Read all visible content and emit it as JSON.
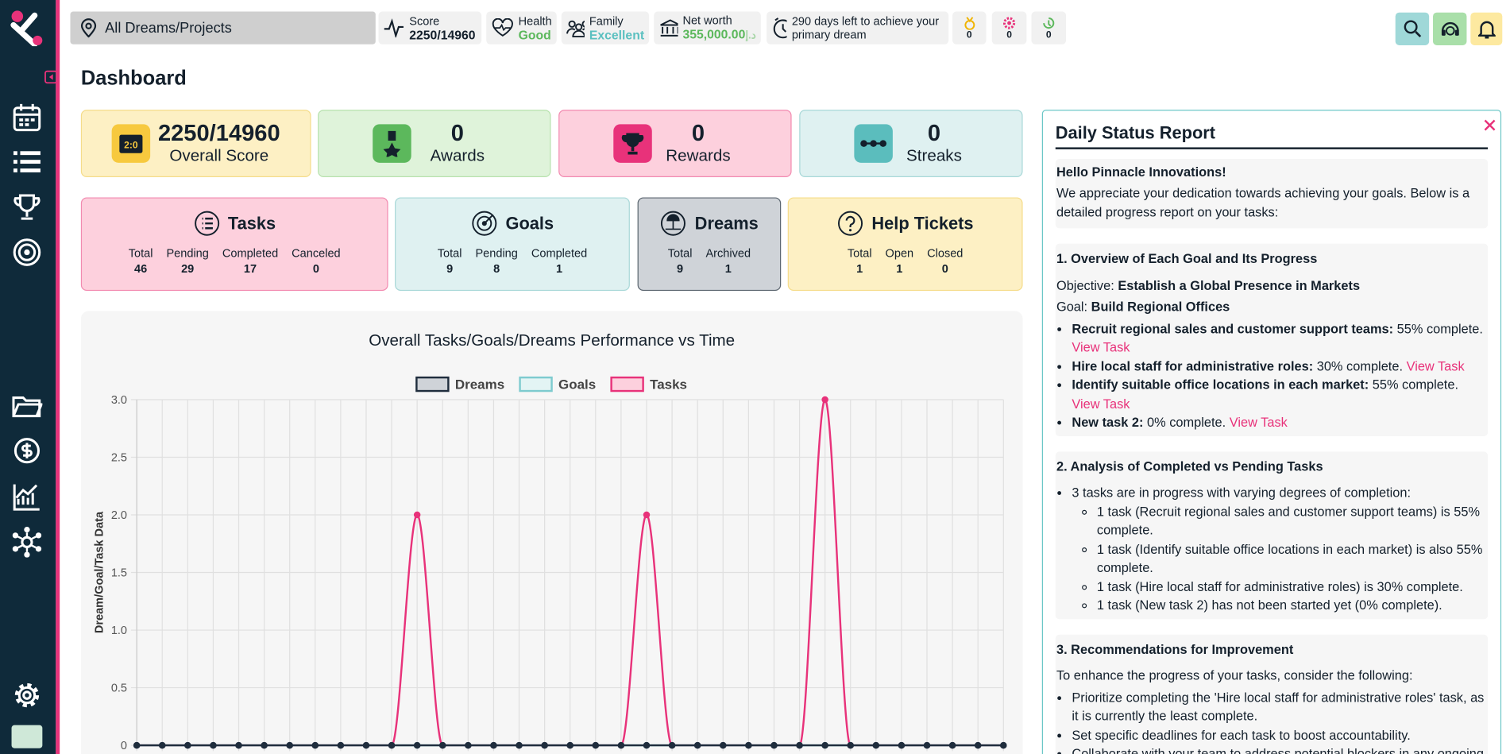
{
  "topbar": {
    "search": "All Dreams/Projects",
    "score": {
      "label": "Score",
      "value": "2250/14960"
    },
    "health": {
      "label": "Health",
      "value": "Good"
    },
    "family": {
      "label": "Family",
      "value": "Excellent"
    },
    "net_worth": {
      "label": "Net worth",
      "value": "355,000.00",
      "currency": "د.إ"
    },
    "countdown": "290 days left to achieve your primary dream",
    "badges": [
      0,
      0,
      0
    ]
  },
  "heading": "Dashboard",
  "stats": [
    {
      "value": "2250/14960",
      "label": "Overall Score"
    },
    {
      "value": 0,
      "label": "Awards"
    },
    {
      "value": 0,
      "label": "Rewards"
    },
    {
      "value": 0,
      "label": "Streaks"
    }
  ],
  "sections": [
    {
      "title": "Tasks",
      "stats": [
        {
          "label": "Total",
          "value": 46
        },
        {
          "label": "Pending",
          "value": 29
        },
        {
          "label": "Completed",
          "value": 17
        },
        {
          "label": "Canceled",
          "value": 0
        }
      ]
    },
    {
      "title": "Goals",
      "stats": [
        {
          "label": "Total",
          "value": 9
        },
        {
          "label": "Pending",
          "value": 8
        },
        {
          "label": "Completed",
          "value": 1
        }
      ]
    },
    {
      "title": "Dreams",
      "stats": [
        {
          "label": "Total",
          "value": 9
        },
        {
          "label": "Archived",
          "value": 1
        }
      ]
    },
    {
      "title": "Help Tickets",
      "stats": [
        {
          "label": "Total",
          "value": 1
        },
        {
          "label": "Open",
          "value": 1
        },
        {
          "label": "Closed",
          "value": 0
        }
      ]
    }
  ],
  "report": {
    "title": "Daily Status Report",
    "greeting": "Hello Pinnacle Innovations!",
    "intro": "We appreciate your dedication towards achieving your goals. Below is a detailed progress report on your tasks:",
    "sections": [
      {
        "heading": "1. Overview of Each Goal and Its Progress",
        "lines": [
          {
            "label": "Objective:",
            "value": "Establish a Global Presence in Markets"
          },
          {
            "label": "Goal:",
            "value": "Build Regional Offices"
          }
        ],
        "items": [
          {
            "bold": "Recruit regional sales and customer support teams:",
            "text": "55% complete.",
            "link": "View Task"
          },
          {
            "bold": "Hire local staff for administrative roles:",
            "text": "30% complete.",
            "link": "View Task"
          },
          {
            "bold": "Identify suitable office locations in each market:",
            "text": "55% complete.",
            "link": "View Task"
          },
          {
            "bold": "New task 2:",
            "text": "0% complete.",
            "link": "View Task"
          }
        ]
      },
      {
        "heading": "2. Analysis of Completed vs Pending Tasks",
        "items": [
          {
            "text": "3 tasks are in progress with varying degrees of completion:",
            "subitems": [
              "1 task (Recruit regional sales and customer support teams) is 55% complete.",
              "1 task (Identify suitable office locations in each market) is also 55% complete.",
              "1 task (Hire local staff for administrative roles) is 30% complete.",
              "1 task (New task 2) has not been started yet (0% complete)."
            ]
          }
        ]
      },
      {
        "heading": "3. Recommendations for Improvement",
        "intro": "To enhance the progress of your tasks, consider the following:",
        "items": [
          {
            "text": "Prioritize completing the 'Hire local staff for administrative roles' task, as it is currently the least complete."
          },
          {
            "text": "Set specific deadlines for each task to boost accountability."
          },
          {
            "text": "Collaborate with your team to address potential blockers in any ongoing tasks."
          }
        ]
      }
    ]
  },
  "chart_data": {
    "type": "line",
    "title": "Overall Tasks/Goals/Dreams Performance vs Time",
    "y_label": "Dream/Goal/Task Data",
    "categories": [
      null,
      null,
      null,
      null,
      null,
      null,
      null,
      null,
      null,
      null,
      null,
      null,
      null,
      null,
      null,
      null,
      null,
      null,
      null,
      null,
      null,
      null,
      null,
      null,
      null,
      null,
      null,
      null,
      null,
      null,
      null,
      null,
      null,
      null,
      null
    ],
    "series": [
      {
        "name": "Dreams",
        "color": "#1f2d3d",
        "fill": "#cfd3d8",
        "values": [
          0,
          0,
          0,
          0,
          0,
          0,
          0,
          0,
          0,
          0,
          0,
          0,
          0,
          0,
          0,
          0,
          0,
          0,
          0,
          0,
          0,
          0,
          0,
          0,
          0,
          0,
          0,
          0,
          0,
          0,
          0,
          0,
          0,
          0,
          0
        ]
      },
      {
        "name": "Goals",
        "color": "#7ecbcf",
        "fill": "#e3f4f4",
        "values": [
          0,
          0,
          0,
          0,
          0,
          0,
          0,
          0,
          0,
          0,
          0,
          0,
          0,
          0,
          0,
          0,
          0,
          0,
          0,
          0,
          0,
          0,
          0,
          0,
          0,
          0,
          0,
          0,
          0,
          0,
          0,
          0,
          0,
          0,
          0
        ]
      },
      {
        "name": "Tasks",
        "color": "#e8327a",
        "fill": "#fdd0dd",
        "values": [
          0,
          0,
          0,
          0,
          0,
          0,
          0,
          0,
          0,
          0,
          0,
          2,
          0,
          0,
          0,
          0,
          0,
          0,
          0,
          0,
          2,
          0,
          0,
          0,
          0,
          0,
          0,
          3,
          0,
          0,
          0,
          0,
          0,
          0,
          0
        ]
      }
    ],
    "ylim": [
      0,
      3
    ],
    "yticks": [
      0,
      0.5,
      {
        "value": 1,
        "label": "1.0"
      },
      1.5,
      {
        "value": 2,
        "label": "2.0"
      },
      2.5,
      {
        "value": 3,
        "label": "3.0"
      }
    ],
    "grid": true,
    "legend": "top"
  }
}
